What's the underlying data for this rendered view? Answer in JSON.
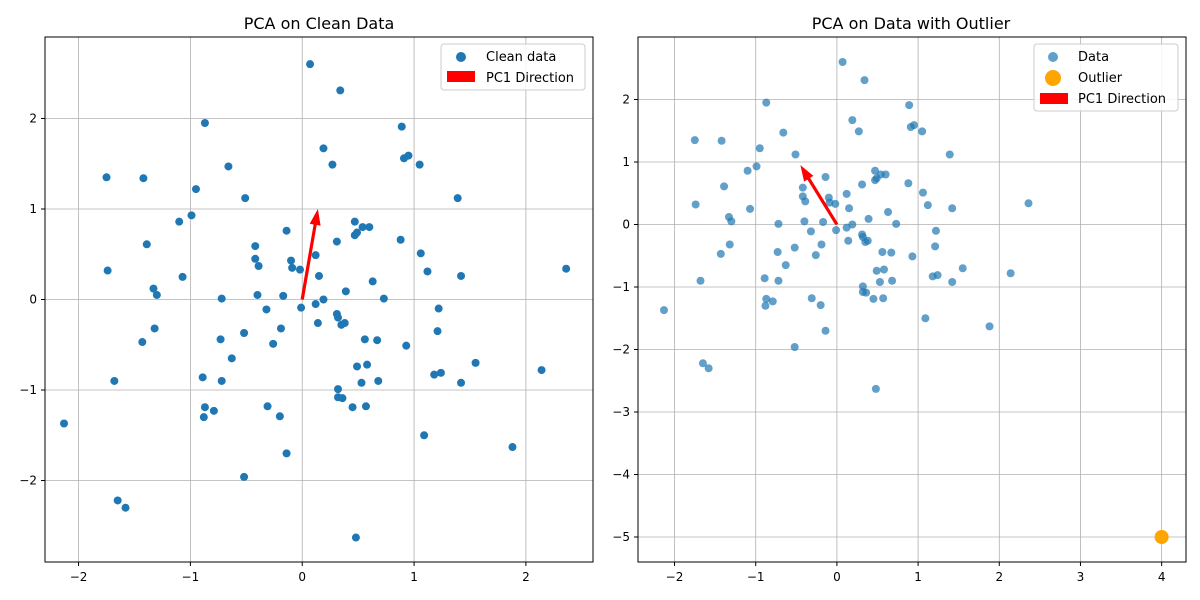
{
  "chart_data": [
    {
      "type": "scatter",
      "title": "PCA on Clean Data",
      "xlim": [
        -2.3,
        2.6
      ],
      "ylim": [
        -2.9,
        2.9
      ],
      "xticks": [
        -2,
        -1,
        0,
        1,
        2
      ],
      "yticks": [
        -2,
        -1,
        0,
        1,
        2
      ],
      "grid": true,
      "legend_placement": "top-right",
      "series": [
        {
          "name": "Clean data",
          "color": "#1f77b4",
          "points": [
            [
              0.07,
              2.6
            ],
            [
              0.34,
              2.31
            ],
            [
              -0.87,
              1.95
            ],
            [
              0.89,
              1.91
            ],
            [
              0.19,
              1.67
            ],
            [
              0.91,
              1.56
            ],
            [
              0.95,
              1.59
            ],
            [
              -0.66,
              1.47
            ],
            [
              0.27,
              1.49
            ],
            [
              1.05,
              1.49
            ],
            [
              -1.75,
              1.35
            ],
            [
              -1.42,
              1.34
            ],
            [
              -0.95,
              1.22
            ],
            [
              -0.51,
              1.12
            ],
            [
              1.39,
              1.12
            ],
            [
              -1.1,
              0.86
            ],
            [
              -0.99,
              0.93
            ],
            [
              0.47,
              0.86
            ],
            [
              0.49,
              0.74
            ],
            [
              0.54,
              0.8
            ],
            [
              0.6,
              0.8
            ],
            [
              -0.14,
              0.76
            ],
            [
              0.47,
              0.71
            ],
            [
              0.31,
              0.64
            ],
            [
              0.88,
              0.66
            ],
            [
              -1.39,
              0.61
            ],
            [
              -0.42,
              0.59
            ],
            [
              1.06,
              0.51
            ],
            [
              -0.42,
              0.45
            ],
            [
              0.12,
              0.49
            ],
            [
              -0.1,
              0.43
            ],
            [
              -0.39,
              0.37
            ],
            [
              -0.09,
              0.35
            ],
            [
              -0.02,
              0.33
            ],
            [
              -1.74,
              0.32
            ],
            [
              1.12,
              0.31
            ],
            [
              1.42,
              0.26
            ],
            [
              -1.07,
              0.25
            ],
            [
              0.15,
              0.26
            ],
            [
              0.63,
              0.2
            ],
            [
              -1.33,
              0.12
            ],
            [
              0.39,
              0.09
            ],
            [
              -0.4,
              0.05
            ],
            [
              -1.3,
              0.05
            ],
            [
              -0.17,
              0.04
            ],
            [
              -0.72,
              0.01
            ],
            [
              0.19,
              0.0
            ],
            [
              0.73,
              0.01
            ],
            [
              0.12,
              -0.05
            ],
            [
              -0.01,
              -0.09
            ],
            [
              1.22,
              -0.1
            ],
            [
              -0.32,
              -0.11
            ],
            [
              0.31,
              -0.16
            ],
            [
              0.32,
              -0.2
            ],
            [
              0.14,
              -0.26
            ],
            [
              0.38,
              -0.26
            ],
            [
              0.35,
              -0.28
            ],
            [
              -1.32,
              -0.32
            ],
            [
              -0.19,
              -0.32
            ],
            [
              1.21,
              -0.35
            ],
            [
              -0.52,
              -0.37
            ],
            [
              -0.73,
              -0.44
            ],
            [
              0.56,
              -0.44
            ],
            [
              0.67,
              -0.45
            ],
            [
              -1.43,
              -0.47
            ],
            [
              -0.26,
              -0.49
            ],
            [
              0.93,
              -0.51
            ],
            [
              -0.63,
              -0.65
            ],
            [
              1.55,
              -0.7
            ],
            [
              0.58,
              -0.72
            ],
            [
              0.49,
              -0.74
            ],
            [
              2.14,
              -0.78
            ],
            [
              1.24,
              -0.81
            ],
            [
              1.18,
              -0.83
            ],
            [
              -0.89,
              -0.86
            ],
            [
              -1.68,
              -0.9
            ],
            [
              -0.72,
              -0.9
            ],
            [
              0.68,
              -0.9
            ],
            [
              0.53,
              -0.92
            ],
            [
              1.42,
              -0.92
            ],
            [
              0.32,
              -0.99
            ],
            [
              0.32,
              -1.08
            ],
            [
              0.36,
              -1.09
            ],
            [
              -0.31,
              -1.18
            ],
            [
              0.45,
              -1.19
            ],
            [
              0.57,
              -1.18
            ],
            [
              -0.87,
              -1.19
            ],
            [
              -0.79,
              -1.23
            ],
            [
              -0.2,
              -1.29
            ],
            [
              -0.88,
              -1.3
            ],
            [
              1.09,
              -1.5
            ],
            [
              1.88,
              -1.63
            ],
            [
              -0.14,
              -1.7
            ],
            [
              -0.52,
              -1.96
            ],
            [
              -2.13,
              -1.37
            ],
            [
              -1.65,
              -2.22
            ],
            [
              -1.58,
              -2.3
            ],
            [
              0.48,
              -2.63
            ],
            [
              2.36,
              0.34
            ]
          ]
        },
        {
          "name": "PC1 Direction",
          "color": "#ff0000",
          "arrow": {
            "from": [
              0,
              0
            ],
            "to": [
              0.14,
              1.0
            ]
          }
        }
      ]
    },
    {
      "type": "scatter",
      "title": "PCA on Data with Outlier",
      "xlim": [
        -2.45,
        4.3
      ],
      "ylim": [
        -5.4,
        3.0
      ],
      "xticks": [
        -2,
        -1,
        0,
        1,
        2,
        3,
        4
      ],
      "yticks": [
        -5,
        -4,
        -3,
        -2,
        -1,
        0,
        1,
        2
      ],
      "grid": true,
      "legend_placement": "top-right",
      "series": [
        {
          "name": "Data",
          "color": "#1f77b4",
          "alpha": 0.7,
          "same_points_as_left_chart": true
        },
        {
          "name": "Outlier",
          "color": "#ffa500",
          "points": [
            [
              4.0,
              -5.0
            ]
          ]
        },
        {
          "name": "PC1 Direction",
          "color": "#ff0000",
          "arrow": {
            "from": [
              0,
              0
            ],
            "to": [
              -0.45,
              0.95
            ]
          }
        }
      ]
    }
  ]
}
